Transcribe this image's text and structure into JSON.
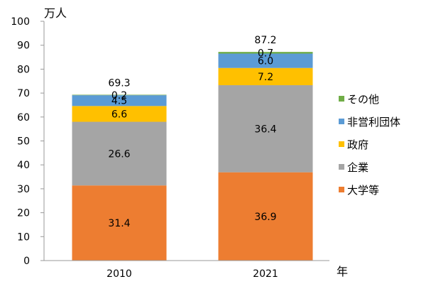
{
  "chart_data": {
    "type": "bar",
    "stacked": true,
    "categories": [
      "2010",
      "2021"
    ],
    "series": [
      {
        "name": "大学等",
        "values": [
          31.4,
          36.9
        ],
        "color": "#ED7D31"
      },
      {
        "name": "企業",
        "values": [
          26.6,
          36.4
        ],
        "color": "#A5A5A5"
      },
      {
        "name": "政府",
        "values": [
          6.6,
          7.2
        ],
        "color": "#FFC000"
      },
      {
        "name": "非営利団体",
        "values": [
          4.5,
          6.0
        ],
        "color": "#5B9BD5"
      },
      {
        "name": "その他",
        "values": [
          0.2,
          0.7
        ],
        "color": "#70AD47"
      }
    ],
    "totals": [
      69.3,
      87.2
    ],
    "ylabel": "万人",
    "xlabel": "年",
    "ylim": [
      0,
      100
    ],
    "yticks": [
      0,
      10,
      20,
      30,
      40,
      50,
      60,
      70,
      80,
      90,
      100
    ],
    "grid": false,
    "legend_position": "right",
    "legend_order": [
      "その他",
      "非営利団体",
      "政府",
      "企業",
      "大学等"
    ]
  }
}
